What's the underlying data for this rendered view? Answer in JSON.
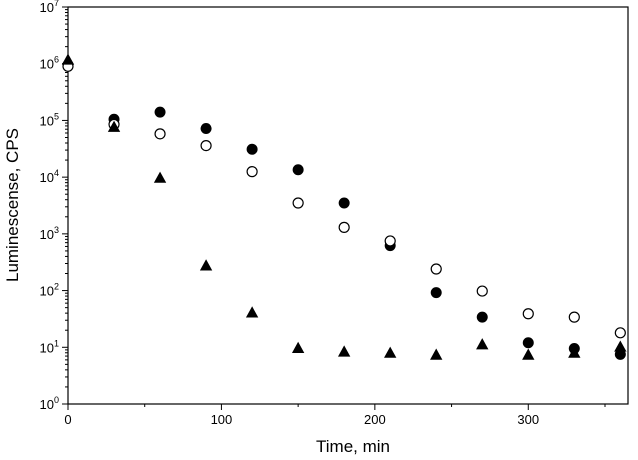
{
  "chart_data": {
    "type": "scatter",
    "xlabel": "Time, min",
    "ylabel": "Luminescense, CPS",
    "xlim": [
      0,
      365
    ],
    "ylim": [
      1,
      10000000
    ],
    "yscale": "log",
    "grid": false,
    "x_ticks": [
      0,
      100,
      200,
      300
    ],
    "x_minor_ticks": [
      50,
      150,
      250,
      350
    ],
    "y_ticks": [
      {
        "value": 1,
        "base": "10",
        "exp": "0"
      },
      {
        "value": 10,
        "base": "10",
        "exp": "1"
      },
      {
        "value": 100,
        "base": "10",
        "exp": "2"
      },
      {
        "value": 1000,
        "base": "10",
        "exp": "3"
      },
      {
        "value": 10000,
        "base": "10",
        "exp": "4"
      },
      {
        "value": 100000,
        "base": "10",
        "exp": "5"
      },
      {
        "value": 1000000,
        "base": "10",
        "exp": "6"
      },
      {
        "value": 10000000,
        "base": "10",
        "exp": "7"
      }
    ],
    "series": [
      {
        "marker": "filled-circle",
        "color": "#000000",
        "x": [
          0,
          30,
          60,
          90,
          120,
          150,
          180,
          210,
          240,
          270,
          300,
          330,
          360
        ],
        "y": [
          950000,
          105000,
          140000,
          72000,
          31000,
          13500,
          3500,
          620,
          92,
          34,
          12,
          9.5,
          7.5
        ]
      },
      {
        "marker": "open-circle",
        "color": "#000000",
        "x": [
          0,
          30,
          60,
          90,
          120,
          150,
          180,
          210,
          240,
          270,
          300,
          330,
          360
        ],
        "y": [
          900000,
          85000,
          58000,
          36000,
          12500,
          3500,
          1300,
          750,
          240,
          98,
          39,
          34,
          18
        ]
      },
      {
        "marker": "filled-triangle",
        "color": "#000000",
        "x": [
          0,
          30,
          60,
          90,
          120,
          150,
          180,
          210,
          240,
          270,
          300,
          330,
          360
        ],
        "y": [
          1150000,
          75000,
          9500,
          270,
          40,
          9.5,
          8.2,
          7.8,
          7.2,
          11,
          7.2,
          7.8,
          10
        ]
      }
    ]
  }
}
